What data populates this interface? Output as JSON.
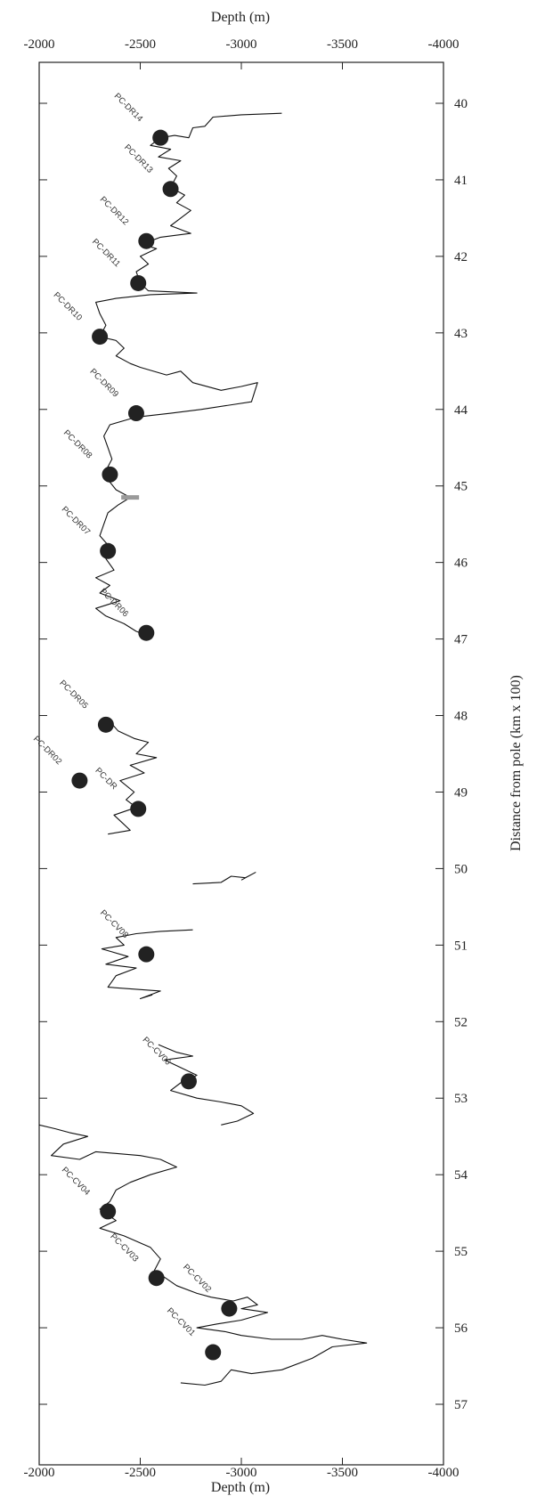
{
  "chart_data": {
    "type": "line",
    "title": "",
    "xlabel_top": "Depth (m)",
    "xlabel_bottom": "Depth (m)",
    "ylabel": "Distance from pole (km x 100)",
    "xlim": [
      -2000,
      -4000
    ],
    "ylim": [
      39.4,
      57.5
    ],
    "y_inverted": true,
    "x_ticks": [
      -2000,
      -2500,
      -3000,
      -3500,
      -4000
    ],
    "y_ticks": [
      40,
      41,
      42,
      43,
      44,
      45,
      46,
      47,
      48,
      49,
      50,
      51,
      52,
      53,
      54,
      55,
      56,
      57
    ],
    "grid": false,
    "profile_segments": [
      [
        [
          -3200,
          40.13
        ],
        [
          -3000,
          40.15
        ],
        [
          -2860,
          40.18
        ],
        [
          -2820,
          40.3
        ],
        [
          -2760,
          40.32
        ],
        [
          -2740,
          40.45
        ],
        [
          -2670,
          40.42
        ],
        [
          -2600,
          40.45
        ],
        [
          -2550,
          40.55
        ],
        [
          -2650,
          40.6
        ],
        [
          -2590,
          40.7
        ],
        [
          -2700,
          40.75
        ],
        [
          -2640,
          40.85
        ],
        [
          -2680,
          40.95
        ],
        [
          -2650,
          41.1
        ],
        [
          -2720,
          41.2
        ],
        [
          -2680,
          41.3
        ],
        [
          -2750,
          41.4
        ],
        [
          -2700,
          41.5
        ],
        [
          -2650,
          41.6
        ],
        [
          -2750,
          41.7
        ],
        [
          -2600,
          41.75
        ],
        [
          -2550,
          41.8
        ],
        [
          -2520,
          41.85
        ],
        [
          -2580,
          41.9
        ],
        [
          -2500,
          42.0
        ],
        [
          -2540,
          42.1
        ],
        [
          -2480,
          42.2
        ],
        [
          -2500,
          42.35
        ],
        [
          -2540,
          42.45
        ],
        [
          -2780,
          42.48
        ],
        [
          -2550,
          42.5
        ],
        [
          -2380,
          42.55
        ],
        [
          -2280,
          42.6
        ],
        [
          -2300,
          42.75
        ],
        [
          -2330,
          42.9
        ],
        [
          -2300,
          43.05
        ],
        [
          -2380,
          43.1
        ],
        [
          -2420,
          43.2
        ],
        [
          -2380,
          43.3
        ],
        [
          -2450,
          43.4
        ],
        [
          -2500,
          43.45
        ],
        [
          -2630,
          43.55
        ],
        [
          -2700,
          43.5
        ],
        [
          -2760,
          43.65
        ],
        [
          -2900,
          43.75
        ],
        [
          -3000,
          43.7
        ],
        [
          -3080,
          43.65
        ],
        [
          -3050,
          43.9
        ],
        [
          -2800,
          44.0
        ],
        [
          -2650,
          44.05
        ],
        [
          -2480,
          44.1
        ],
        [
          -2350,
          44.2
        ],
        [
          -2320,
          44.35
        ],
        [
          -2340,
          44.5
        ],
        [
          -2360,
          44.65
        ],
        [
          -2330,
          44.8
        ],
        [
          -2350,
          44.95
        ],
        [
          -2380,
          45.05
        ],
        [
          -2450,
          45.15
        ],
        [
          -2390,
          45.25
        ],
        [
          -2340,
          45.35
        ],
        [
          -2320,
          45.5
        ],
        [
          -2300,
          45.65
        ],
        [
          -2350,
          45.8
        ],
        [
          -2330,
          45.95
        ],
        [
          -2370,
          46.1
        ],
        [
          -2280,
          46.2
        ],
        [
          -2350,
          46.3
        ],
        [
          -2300,
          46.4
        ],
        [
          -2400,
          46.5
        ],
        [
          -2280,
          46.6
        ],
        [
          -2330,
          46.7
        ],
        [
          -2420,
          46.8
        ],
        [
          -2480,
          46.9
        ],
        [
          -2530,
          46.95
        ]
      ],
      [
        [
          -2340,
          48.05
        ],
        [
          -2390,
          48.2
        ],
        [
          -2470,
          48.3
        ],
        [
          -2540,
          48.35
        ],
        [
          -2480,
          48.5
        ],
        [
          -2580,
          48.55
        ],
        [
          -2450,
          48.65
        ],
        [
          -2520,
          48.75
        ],
        [
          -2400,
          48.85
        ],
        [
          -2470,
          49.0
        ],
        [
          -2430,
          49.1
        ],
        [
          -2480,
          49.2
        ],
        [
          -2370,
          49.3
        ],
        [
          -2410,
          49.4
        ],
        [
          -2450,
          49.5
        ],
        [
          -2340,
          49.55
        ]
      ],
      [
        [
          -2760,
          50.2
        ],
        [
          -2900,
          50.18
        ],
        [
          -2950,
          50.1
        ],
        [
          -3020,
          50.12
        ],
        [
          -3070,
          50.05
        ],
        [
          -3000,
          50.15
        ]
      ],
      [
        [
          -2760,
          50.8
        ],
        [
          -2600,
          50.82
        ],
        [
          -2480,
          50.85
        ],
        [
          -2380,
          50.9
        ],
        [
          -2420,
          51.0
        ],
        [
          -2310,
          51.05
        ],
        [
          -2440,
          51.15
        ],
        [
          -2330,
          51.25
        ],
        [
          -2480,
          51.3
        ],
        [
          -2380,
          51.4
        ],
        [
          -2340,
          51.55
        ],
        [
          -2600,
          51.6
        ],
        [
          -2500,
          51.7
        ],
        [
          -2560,
          51.65
        ]
      ],
      [
        [
          -2590,
          52.3
        ],
        [
          -2680,
          52.4
        ],
        [
          -2760,
          52.45
        ],
        [
          -2620,
          52.5
        ],
        [
          -2700,
          52.6
        ],
        [
          -2780,
          52.7
        ],
        [
          -2700,
          52.8
        ],
        [
          -2650,
          52.9
        ],
        [
          -2780,
          53.0
        ],
        [
          -2900,
          53.05
        ],
        [
          -3000,
          53.1
        ],
        [
          -3060,
          53.2
        ],
        [
          -2980,
          53.3
        ],
        [
          -2900,
          53.35
        ]
      ],
      [
        [
          -2000,
          53.35
        ],
        [
          -2080,
          53.4
        ],
        [
          -2150,
          53.45
        ],
        [
          -2240,
          53.5
        ],
        [
          -2120,
          53.6
        ],
        [
          -2060,
          53.75
        ],
        [
          -2200,
          53.8
        ],
        [
          -2280,
          53.7
        ],
        [
          -2500,
          53.75
        ],
        [
          -2600,
          53.8
        ],
        [
          -2680,
          53.9
        ],
        [
          -2550,
          54.0
        ],
        [
          -2450,
          54.1
        ],
        [
          -2380,
          54.2
        ],
        [
          -2350,
          54.35
        ],
        [
          -2300,
          54.45
        ],
        [
          -2380,
          54.6
        ],
        [
          -2300,
          54.7
        ],
        [
          -2420,
          54.8
        ],
        [
          -2550,
          54.95
        ],
        [
          -2600,
          55.1
        ],
        [
          -2570,
          55.25
        ],
        [
          -2680,
          55.45
        ],
        [
          -2780,
          55.55
        ],
        [
          -2850,
          55.6
        ],
        [
          -2960,
          55.65
        ],
        [
          -3030,
          55.6
        ],
        [
          -3080,
          55.7
        ],
        [
          -3000,
          55.75
        ],
        [
          -3130,
          55.8
        ],
        [
          -3000,
          55.9
        ],
        [
          -2880,
          55.95
        ],
        [
          -2780,
          56.0
        ],
        [
          -2920,
          56.05
        ],
        [
          -3000,
          56.1
        ],
        [
          -3150,
          56.15
        ],
        [
          -3300,
          56.15
        ],
        [
          -3400,
          56.1
        ],
        [
          -3500,
          56.15
        ],
        [
          -3620,
          56.2
        ],
        [
          -3450,
          56.25
        ],
        [
          -3350,
          56.4
        ],
        [
          -3200,
          56.55
        ],
        [
          -3050,
          56.6
        ],
        [
          -2950,
          56.55
        ],
        [
          -2900,
          56.7
        ],
        [
          -2820,
          56.75
        ],
        [
          -2700,
          56.72
        ]
      ]
    ],
    "samples": [
      {
        "label": "PC-DR14",
        "x": -2600,
        "y": 40.45
      },
      {
        "label": "PC-DR13",
        "x": -2650,
        "y": 41.12
      },
      {
        "label": "PC-DR12",
        "x": -2530,
        "y": 41.8
      },
      {
        "label": "PC-DR11",
        "x": -2490,
        "y": 42.35
      },
      {
        "label": "PC-DR10",
        "x": -2300,
        "y": 43.05
      },
      {
        "label": "PC-DR09",
        "x": -2480,
        "y": 44.05
      },
      {
        "label": "PC-DR08",
        "x": -2350,
        "y": 44.85
      },
      {
        "label": "PC-DR07",
        "x": -2340,
        "y": 45.85
      },
      {
        "label": "PC-DR06",
        "x": -2530,
        "y": 46.92
      },
      {
        "label": "PC-DR05",
        "x": -2330,
        "y": 48.12
      },
      {
        "label": "PC-DR02",
        "x": -2200,
        "y": 48.85
      },
      {
        "label": "PC-DR",
        "x": -2490,
        "y": 49.22
      },
      {
        "label": "PC-CV08",
        "x": -2530,
        "y": 51.12
      },
      {
        "label": "PC-CV06",
        "x": -2740,
        "y": 52.78
      },
      {
        "label": "PC-CV04",
        "x": -2340,
        "y": 54.48
      },
      {
        "label": "PC-CV03",
        "x": -2580,
        "y": 55.35
      },
      {
        "label": "PC-CV02",
        "x": -2940,
        "y": 55.75
      },
      {
        "label": "PC-CV01",
        "x": -2860,
        "y": 56.32
      }
    ],
    "grey_mark": {
      "x": -2450,
      "y": 45.15
    }
  }
}
